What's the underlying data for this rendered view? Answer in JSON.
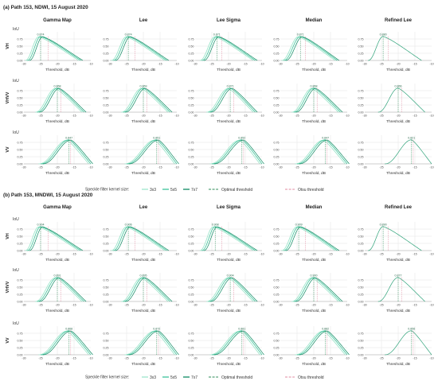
{
  "figure": {
    "tick_x_labels": [
      "-30",
      "-25",
      "-20",
      "-15",
      "-10"
    ],
    "tick_y_labels": [
      "0.00",
      "0.25",
      "0.50",
      "0.75"
    ],
    "iou_label": "IoU",
    "xlabel": "Threshold, dB",
    "filters": [
      "Gamma Map",
      "Lee",
      "Lee Sigma",
      "Median",
      "Refined Lee"
    ],
    "polarizations": [
      "VH",
      "VHVV",
      "VV"
    ],
    "legend": {
      "kernel_label": "Speckle filter kernel size:",
      "kernels": [
        "3x3",
        "5x5",
        "7x7"
      ],
      "optimal": "Optimal threshold",
      "otsu": "Otsu threshold"
    },
    "colors": {
      "k3x3": "#9fe6cc",
      "k5x5": "#3cc49a",
      "k7x7": "#0d8a62",
      "refined": "#2fa37a",
      "optimal": "#2e8b57",
      "otsu": "#e08aa0",
      "grid": "#e4e4e4"
    }
  },
  "chart_data": [
    {
      "type": "line",
      "title": "(a) Path 153, NDWI, 15 August 2020",
      "xlabel": "Threshold, dB",
      "ylabel": "IoU",
      "xlim": [
        -30,
        -10
      ],
      "ylim": [
        0,
        1
      ],
      "grid": true,
      "legend_placement": "bottom",
      "panels": [
        {
          "row": "VH",
          "col": "Gamma Map",
          "peak_x": -25,
          "peak_label": "0.874",
          "left_edge": -29,
          "right_edge": -13,
          "otsu_x": -22.8
        },
        {
          "row": "VH",
          "col": "Lee",
          "peak_x": -24.5,
          "peak_label": "0.874",
          "left_edge": -29,
          "right_edge": -13,
          "otsu_x": -22.5
        },
        {
          "row": "VH",
          "col": "Lee Sigma",
          "peak_x": -23.5,
          "peak_label": "0.871",
          "left_edge": -28,
          "right_edge": -12,
          "otsu_x": -22
        },
        {
          "row": "VH",
          "col": "Median",
          "peak_x": -24,
          "peak_label": "0.871",
          "left_edge": -29,
          "right_edge": -13,
          "otsu_x": -22.5
        },
        {
          "row": "VH",
          "col": "Refined Lee",
          "peak_x": -24.5,
          "peak_label": "0.880",
          "left_edge": -29,
          "right_edge": -13,
          "otsu_x": -23
        },
        {
          "row": "VHVV",
          "col": "Gamma Map",
          "peak_x": -20,
          "peak_label": "0.868",
          "left_edge": -26,
          "right_edge": -12,
          "otsu_x": -19
        },
        {
          "row": "VHVV",
          "col": "Lee",
          "peak_x": -20,
          "peak_label": "0.869",
          "left_edge": -26,
          "right_edge": -12,
          "otsu_x": -19
        },
        {
          "row": "VHVV",
          "col": "Lee Sigma",
          "peak_x": -19.5,
          "peak_label": "0.871",
          "left_edge": -26,
          "right_edge": -12,
          "otsu_x": -18.5
        },
        {
          "row": "VHVV",
          "col": "Median",
          "peak_x": -20,
          "peak_label": "0.868",
          "left_edge": -26,
          "right_edge": -12,
          "otsu_x": -19
        },
        {
          "row": "VHVV",
          "col": "Refined Lee",
          "peak_x": -20,
          "peak_label": "0.866",
          "left_edge": -26,
          "right_edge": -12,
          "otsu_x": -19
        },
        {
          "row": "VV",
          "col": "Gamma Map",
          "peak_x": -16.5,
          "peak_label": "0.847",
          "left_edge": -25,
          "right_edge": -10,
          "otsu_x": -16
        },
        {
          "row": "VV",
          "col": "Lee",
          "peak_x": -16,
          "peak_label": "0.851",
          "left_edge": -25,
          "right_edge": -10,
          "otsu_x": -15.5
        },
        {
          "row": "VV",
          "col": "Lee Sigma",
          "peak_x": -16,
          "peak_label": "0.852",
          "left_edge": -25,
          "right_edge": -10,
          "otsu_x": -15.5
        },
        {
          "row": "VV",
          "col": "Median",
          "peak_x": -16.5,
          "peak_label": "0.847",
          "left_edge": -25,
          "right_edge": -10,
          "otsu_x": -16
        },
        {
          "row": "VV",
          "col": "Refined Lee",
          "peak_x": -16,
          "peak_label": "0.821",
          "left_edge": -24,
          "right_edge": -10,
          "otsu_x": -15.5
        }
      ]
    },
    {
      "type": "line",
      "title": "(b) Path 153, MNDWI, 15 August 2020",
      "xlabel": "Threshold, dB",
      "ylabel": "IoU",
      "xlim": [
        -30,
        -10
      ],
      "ylim": [
        0,
        1
      ],
      "grid": true,
      "legend_placement": "bottom",
      "panels": [
        {
          "row": "VH",
          "col": "Gamma Map",
          "peak_x": -25,
          "peak_label": "0.904",
          "left_edge": -29,
          "right_edge": -13,
          "otsu_x": -22.8
        },
        {
          "row": "VH",
          "col": "Lee",
          "peak_x": -24.5,
          "peak_label": "0.906",
          "left_edge": -29,
          "right_edge": -13,
          "otsu_x": -22.5
        },
        {
          "row": "VH",
          "col": "Lee Sigma",
          "peak_x": -24,
          "peak_label": "0.908",
          "left_edge": -28,
          "right_edge": -12,
          "otsu_x": -22
        },
        {
          "row": "VH",
          "col": "Median",
          "peak_x": -24.5,
          "peak_label": "0.909",
          "left_edge": -29,
          "right_edge": -13,
          "otsu_x": -22.5
        },
        {
          "row": "VH",
          "col": "Refined Lee",
          "peak_x": -24.5,
          "peak_label": "0.890",
          "left_edge": -29,
          "right_edge": -13,
          "otsu_x": -23
        },
        {
          "row": "VHVV",
          "col": "Gamma Map",
          "peak_x": -20,
          "peak_label": "0.891",
          "left_edge": -26,
          "right_edge": -12,
          "otsu_x": -19
        },
        {
          "row": "VHVV",
          "col": "Lee",
          "peak_x": -20,
          "peak_label": "0.895",
          "left_edge": -26,
          "right_edge": -12,
          "otsu_x": -19
        },
        {
          "row": "VHVV",
          "col": "Lee Sigma",
          "peak_x": -19.5,
          "peak_label": "0.904",
          "left_edge": -26,
          "right_edge": -12,
          "otsu_x": -18.5
        },
        {
          "row": "VHVV",
          "col": "Median",
          "peak_x": -20,
          "peak_label": "0.900",
          "left_edge": -26,
          "right_edge": -12,
          "otsu_x": -19
        },
        {
          "row": "VHVV",
          "col": "Refined Lee",
          "peak_x": -20,
          "peak_label": "0.877",
          "left_edge": -26,
          "right_edge": -12,
          "otsu_x": -19
        },
        {
          "row": "VV",
          "col": "Gamma Map",
          "peak_x": -16.5,
          "peak_label": "0.868",
          "left_edge": -25,
          "right_edge": -10,
          "otsu_x": -16
        },
        {
          "row": "VV",
          "col": "Lee",
          "peak_x": -16,
          "peak_label": "0.872",
          "left_edge": -25,
          "right_edge": -10,
          "otsu_x": -15.5
        },
        {
          "row": "VV",
          "col": "Lee Sigma",
          "peak_x": -16,
          "peak_label": "0.881",
          "left_edge": -25,
          "right_edge": -10,
          "otsu_x": -15.5
        },
        {
          "row": "VV",
          "col": "Median",
          "peak_x": -16.5,
          "peak_label": "0.882",
          "left_edge": -25,
          "right_edge": -10,
          "otsu_x": -16
        },
        {
          "row": "VV",
          "col": "Refined Lee",
          "peak_x": -16,
          "peak_label": "0.856",
          "left_edge": -24,
          "right_edge": -10,
          "otsu_x": -15.5
        }
      ]
    }
  ]
}
